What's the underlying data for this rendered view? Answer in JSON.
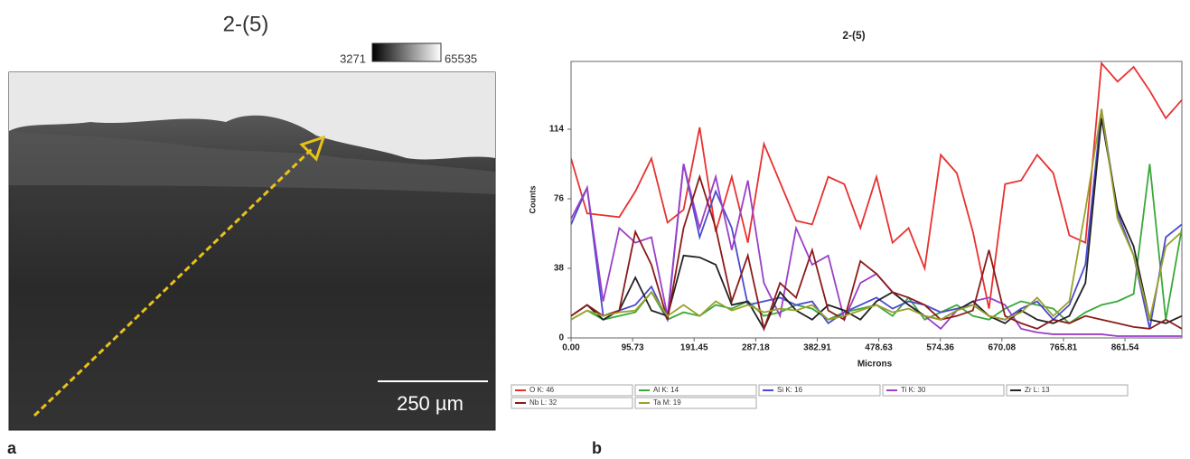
{
  "panel_a": {
    "title": "2-(5)",
    "colorbar_min": 3271,
    "colorbar_max": 65535,
    "scale_bar": "250 µm",
    "label": "a"
  },
  "panel_b_label": "b",
  "chart_data": {
    "type": "line",
    "title": "2-(5)",
    "x_label": "Microns",
    "y_label": "Counts",
    "x": [
      0,
      25,
      50,
      75,
      100,
      125,
      150,
      175,
      200,
      225,
      250,
      275,
      300,
      325,
      350,
      375,
      400,
      425,
      450,
      475,
      500,
      525,
      550,
      575,
      600,
      625,
      650,
      675,
      700,
      725,
      750,
      775,
      800,
      825,
      850,
      875,
      900,
      925,
      950
    ],
    "series": [
      {
        "name": "O K: 46",
        "color": "#e8312f",
        "values": [
          98,
          68,
          67,
          66,
          80,
          98,
          63,
          70,
          115,
          58,
          88,
          52,
          106,
          85,
          64,
          62,
          88,
          84,
          60,
          88,
          52,
          60,
          38,
          100,
          90,
          58,
          16,
          84,
          86,
          100,
          90,
          56,
          52,
          150,
          140,
          148,
          135,
          120,
          130
        ]
      },
      {
        "name": "Al K: 14",
        "color": "#3aa83a",
        "values": [
          10,
          15,
          10,
          12,
          14,
          25,
          10,
          14,
          12,
          18,
          16,
          20,
          12,
          14,
          18,
          16,
          10,
          14,
          16,
          18,
          12,
          22,
          10,
          14,
          18,
          12,
          10,
          16,
          20,
          18,
          16,
          8,
          14,
          18,
          20,
          24,
          95,
          10,
          60
        ]
      },
      {
        "name": "Si K: 16",
        "color": "#4a4ad0",
        "values": [
          62,
          82,
          12,
          15,
          18,
          28,
          10,
          95,
          55,
          80,
          60,
          18,
          20,
          22,
          18,
          20,
          8,
          14,
          18,
          22,
          16,
          20,
          18,
          14,
          16,
          18,
          12,
          10,
          16,
          20,
          10,
          18,
          40,
          125,
          68,
          45,
          5,
          55,
          62
        ]
      },
      {
        "name": "Ti K: 30",
        "color": "#9a3fc8",
        "values": [
          65,
          82,
          20,
          60,
          52,
          55,
          12,
          95,
          60,
          88,
          48,
          86,
          30,
          12,
          60,
          40,
          45,
          10,
          30,
          35,
          25,
          18,
          12,
          5,
          15,
          20,
          22,
          18,
          5,
          3,
          2,
          2,
          2,
          2,
          1,
          1,
          1,
          1,
          1
        ]
      },
      {
        "name": "Zr L: 13",
        "color": "#222222",
        "values": [
          12,
          18,
          10,
          15,
          33,
          15,
          12,
          45,
          44,
          40,
          18,
          20,
          5,
          25,
          15,
          10,
          18,
          15,
          10,
          20,
          25,
          18,
          12,
          10,
          15,
          20,
          12,
          8,
          15,
          10,
          8,
          12,
          30,
          120,
          70,
          50,
          10,
          8,
          12
        ]
      },
      {
        "name": "Nb L: 32",
        "color": "#8b1a1a",
        "values": [
          12,
          18,
          12,
          15,
          58,
          40,
          10,
          60,
          88,
          60,
          20,
          45,
          5,
          30,
          22,
          48,
          15,
          10,
          42,
          35,
          25,
          22,
          18,
          10,
          12,
          15,
          48,
          12,
          8,
          5,
          10,
          8,
          12,
          10,
          8,
          6,
          5,
          10,
          5
        ]
      },
      {
        "name": "Ta M: 19",
        "color": "#9aa12a",
        "values": [
          10,
          15,
          12,
          14,
          15,
          25,
          12,
          18,
          12,
          20,
          15,
          18,
          14,
          16,
          15,
          18,
          10,
          12,
          15,
          18,
          14,
          16,
          12,
          10,
          15,
          18,
          12,
          10,
          14,
          22,
          12,
          20,
          70,
          125,
          65,
          45,
          10,
          50,
          58
        ]
      }
    ],
    "xlim": [
      0,
      950
    ],
    "ylim": [
      0,
      151
    ],
    "xticks": [
      {
        "value": 0,
        "label": "0.00"
      },
      95.73,
      191.45,
      287.18,
      382.91,
      478.63,
      574.36,
      670.08,
      765.81,
      861.54
    ],
    "yticks": [
      0,
      38,
      76,
      114
    ]
  }
}
